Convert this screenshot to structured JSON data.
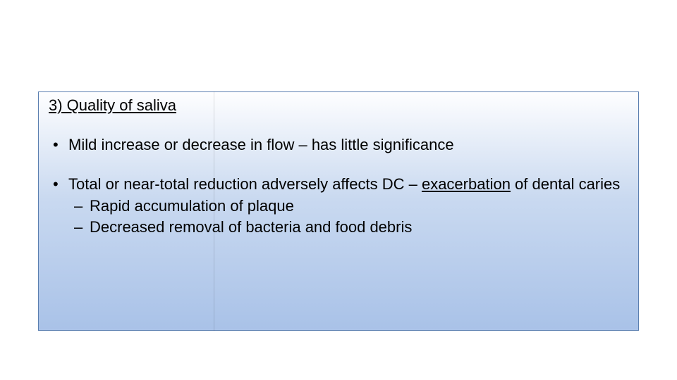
{
  "slide": {
    "background_color": "#ffffff",
    "box": {
      "gradient_top": "#fefeff",
      "gradient_mid": "#c9d9f0",
      "gradient_bottom": "#a9c2e8",
      "border_color": "#5b7fb0"
    },
    "heading": "3) Quality of saliva",
    "bullets": [
      {
        "text": "Mild increase or decrease in flow – has little significance",
        "sub": []
      },
      {
        "prefix": "Total or near-total reduction adversely affects DC – ",
        "underlined": "exacerbation",
        "suffix": " of dental caries",
        "sub": [
          "Rapid accumulation of plaque",
          "Decreased removal of bacteria and food debris"
        ]
      }
    ],
    "font_family": "Comic Sans MS",
    "heading_fontsize": 22,
    "body_fontsize": 22,
    "text_color": "#000000"
  }
}
